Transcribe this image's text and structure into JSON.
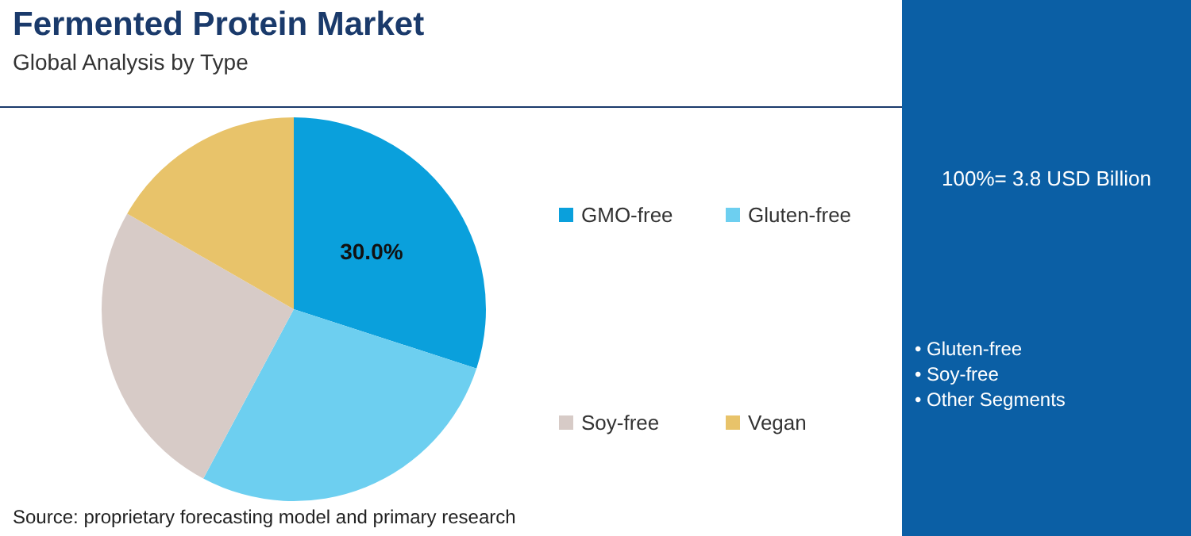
{
  "chart_data": {
    "type": "pie",
    "title": "Fermented Protein Market",
    "subtitle": "Global Analysis by Type",
    "categories": [
      "GMO-free",
      "Gluten-free",
      "Soy-free",
      "Vegan"
    ],
    "values": [
      30.0,
      27.8,
      25.5,
      16.7
    ],
    "colors": [
      "#0aa0dc",
      "#6dcff0",
      "#d7cbc7",
      "#e8c36a"
    ],
    "value_labels": [
      "30.0%",
      null,
      null,
      null
    ],
    "legend": "right",
    "annotations": [
      "100%= 3.8 USD Billion",
      "• Gluten-free",
      "• Soy-free",
      "• Other Segments",
      "Source: proprietary forecasting model and primary research"
    ]
  }
}
